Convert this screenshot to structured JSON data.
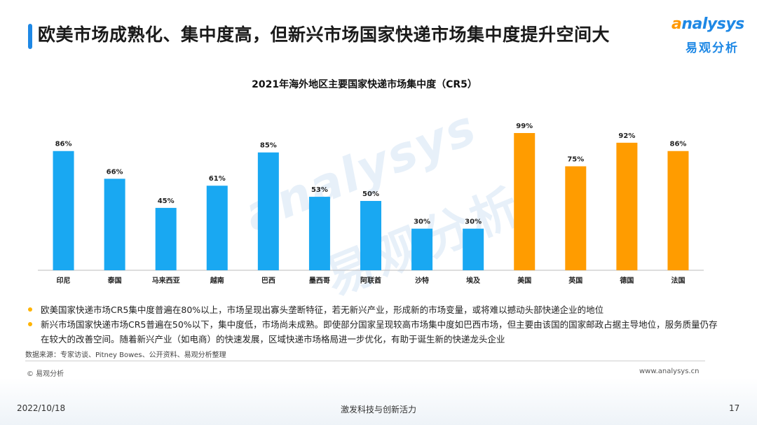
{
  "header": {
    "title": "欧美市场成熟化、集中度高，但新兴市场国家快递市场集中度提升空间大",
    "logo_en_prefix": "a",
    "logo_en_rest": "nalysys",
    "logo_cn": "易观分析"
  },
  "watermark": {
    "en": "analysys",
    "cn": "易观分析"
  },
  "colors": {
    "emerging": "#19a8f2",
    "developed": "#ff9c00",
    "accent": "#1e88e5"
  },
  "chart_data": {
    "type": "bar",
    "title": "2021年海外地区主要国家快递市场集中度（CR5）",
    "categories": [
      "印尼",
      "泰国",
      "马来西亚",
      "越南",
      "巴西",
      "墨西哥",
      "阿联酋",
      "沙特",
      "埃及",
      "美国",
      "英国",
      "德国",
      "法国"
    ],
    "values": [
      86,
      66,
      45,
      61,
      85,
      53,
      50,
      30,
      30,
      99,
      75,
      92,
      86
    ],
    "value_labels": [
      "86%",
      "66%",
      "45%",
      "61%",
      "85%",
      "53%",
      "50%",
      "30%",
      "30%",
      "99%",
      "75%",
      "92%",
      "86%"
    ],
    "groups": [
      "emerging",
      "emerging",
      "emerging",
      "emerging",
      "emerging",
      "emerging",
      "emerging",
      "emerging",
      "emerging",
      "developed",
      "developed",
      "developed",
      "developed"
    ],
    "xlabel": "",
    "ylabel": "",
    "ylim": [
      0,
      100
    ],
    "grid": false
  },
  "notes": [
    "欧美国家快递市场CR5集中度普遍在80%以上，市场呈现出寡头垄断特征，若无新兴产业，形成新的市场变量，或将难以撼动头部快递企业的地位",
    "新兴市场国家快递市场CR5普遍在50%以下，集中度低，市场尚未成熟。即使部分国家呈现较高市场集中度如巴西市场，但主要由该国的国家邮政占据主导地位，服务质量仍存在较大的改善空间。随着新兴产业（如电商）的快速发展，区域快递市场格局进一步优化，有助于诞生新的快递龙头企业"
  ],
  "source": "数据来源：专家访谈、Pitney Bowes、公开资料、易观分析整理",
  "footer": {
    "copyright": "© 易观分析",
    "website": "www.analysys.cn",
    "date": "2022/10/18",
    "slogan": "激发科技与创新活力",
    "page": "17"
  }
}
